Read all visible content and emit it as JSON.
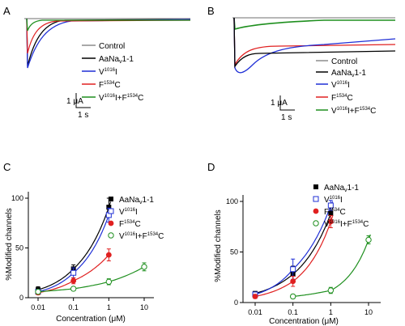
{
  "colors": {
    "control": "#8c8c8c",
    "aanav": "#000000",
    "v1016i": "#1f2fd6",
    "f1534c": "#e02020",
    "double": "#1e8f1e"
  },
  "panels": {
    "A": {
      "letter": "A",
      "legend": [
        {
          "text": "Control",
          "sup": "",
          "tail": "",
          "color_key": "control"
        },
        {
          "text": "AaNa",
          "sub": "v",
          "tail": "1-1",
          "sup": "",
          "color_key": "aanav"
        },
        {
          "text": "V",
          "sup": "1016",
          "tail": "I",
          "color_key": "v1016i"
        },
        {
          "text": "F",
          "sup": "1534",
          "tail": "C",
          "color_key": "f1534c"
        },
        {
          "text": "V",
          "sup": "1016",
          "tail": "I+F",
          "sup2": "1534",
          "tail2": "C",
          "color_key": "double"
        }
      ],
      "scale_y": "1 μA",
      "scale_x": "1 s"
    },
    "B": {
      "letter": "B",
      "legend": [
        {
          "text": "Control",
          "sup": "",
          "tail": "",
          "color_key": "control"
        },
        {
          "text": "AaNa",
          "sub": "v",
          "tail": "1-1",
          "sup": "",
          "color_key": "aanav"
        },
        {
          "text": "V",
          "sup": "1016",
          "tail": "I",
          "color_key": "v1016i"
        },
        {
          "text": "F",
          "sup": "1534",
          "tail": "C",
          "color_key": "f1534c"
        },
        {
          "text": "V",
          "sup": "1016",
          "tail": "I+F",
          "sup2": "1534",
          "tail2": "C",
          "color_key": "double"
        }
      ],
      "scale_y": "1 μA",
      "scale_x": "1 s"
    }
  },
  "chart_data": [
    {
      "type": "scatter",
      "panel": "C",
      "xlabel": "Concentration (μM)",
      "ylabel": "%Modified channels",
      "x_scale": "log",
      "xlim": [
        0.01,
        10
      ],
      "ylim": [
        0,
        100
      ],
      "x_ticks": [
        "0.01",
        "0.1",
        "1",
        "10"
      ],
      "y_ticks": [
        "0",
        "50",
        "100"
      ],
      "legend_position": "top-right",
      "series": [
        {
          "name": "AaNa",
          "name_sub": "v",
          "name_tail": "1-1",
          "color_key": "aanav",
          "marker": "filled-square",
          "x": [
            0.01,
            0.1,
            1
          ],
          "y": [
            8,
            29,
            91
          ],
          "err": [
            3,
            4,
            9
          ]
        },
        {
          "name": "V",
          "name_sup": "1016",
          "name_tail": "I",
          "color_key": "v1016i",
          "marker": "open-square",
          "x": [
            0.01,
            0.1,
            1
          ],
          "y": [
            6,
            25,
            83
          ],
          "err": [
            2,
            5,
            7
          ]
        },
        {
          "name": "F",
          "name_sup": "1534",
          "name_tail": "C",
          "color_key": "f1534c",
          "marker": "filled-circle",
          "x": [
            0.01,
            0.1,
            1
          ],
          "y": [
            5,
            17,
            43
          ],
          "err": [
            2,
            3,
            6
          ]
        },
        {
          "name": "V",
          "name_sup": "1016",
          "name_tail": "I+F",
          "name_sup2": "1534",
          "name_tail2": "C",
          "color_key": "double",
          "marker": "open-circle",
          "x": [
            0.01,
            0.1,
            1,
            10
          ],
          "y": [
            6,
            9,
            16,
            31
          ],
          "err": [
            2,
            2,
            3,
            4
          ]
        }
      ]
    },
    {
      "type": "scatter",
      "panel": "D",
      "xlabel": "Concentration (μM)",
      "ylabel": "%Modified channels",
      "x_scale": "log",
      "xlim": [
        0.01,
        10
      ],
      "ylim": [
        0,
        100
      ],
      "x_ticks": [
        "0.01",
        "0.1",
        "1",
        "10"
      ],
      "y_ticks": [
        "0",
        "50",
        "100"
      ],
      "legend_position": "top-right",
      "series": [
        {
          "name": "AaNa",
          "name_sub": "v",
          "name_tail": "1-1",
          "color_key": "aanav",
          "marker": "filled-square",
          "x": [
            0.01,
            0.1,
            1
          ],
          "y": [
            9,
            28,
            88
          ],
          "err": [
            2,
            8,
            6
          ]
        },
        {
          "name": "V",
          "name_sup": "1016",
          "name_tail": "I",
          "color_key": "v1016i",
          "marker": "open-square",
          "x": [
            0.01,
            0.1,
            1
          ],
          "y": [
            8,
            33,
            96
          ],
          "err": [
            2,
            10,
            5
          ]
        },
        {
          "name": "F",
          "name_sup": "1534",
          "name_tail": "C",
          "color_key": "f1534c",
          "marker": "filled-circle",
          "x": [
            0.01,
            0.1,
            1
          ],
          "y": [
            6,
            21,
            80
          ],
          "err": [
            2,
            5,
            6
          ]
        },
        {
          "name": "V",
          "name_sup": "1016",
          "name_tail": "I+F",
          "name_sup2": "1534",
          "name_tail2": "C",
          "color_key": "double",
          "marker": "open-circle",
          "x": [
            0.1,
            1,
            10
          ],
          "y": [
            6,
            12,
            62
          ],
          "err": [
            2,
            3,
            4
          ]
        }
      ]
    }
  ]
}
